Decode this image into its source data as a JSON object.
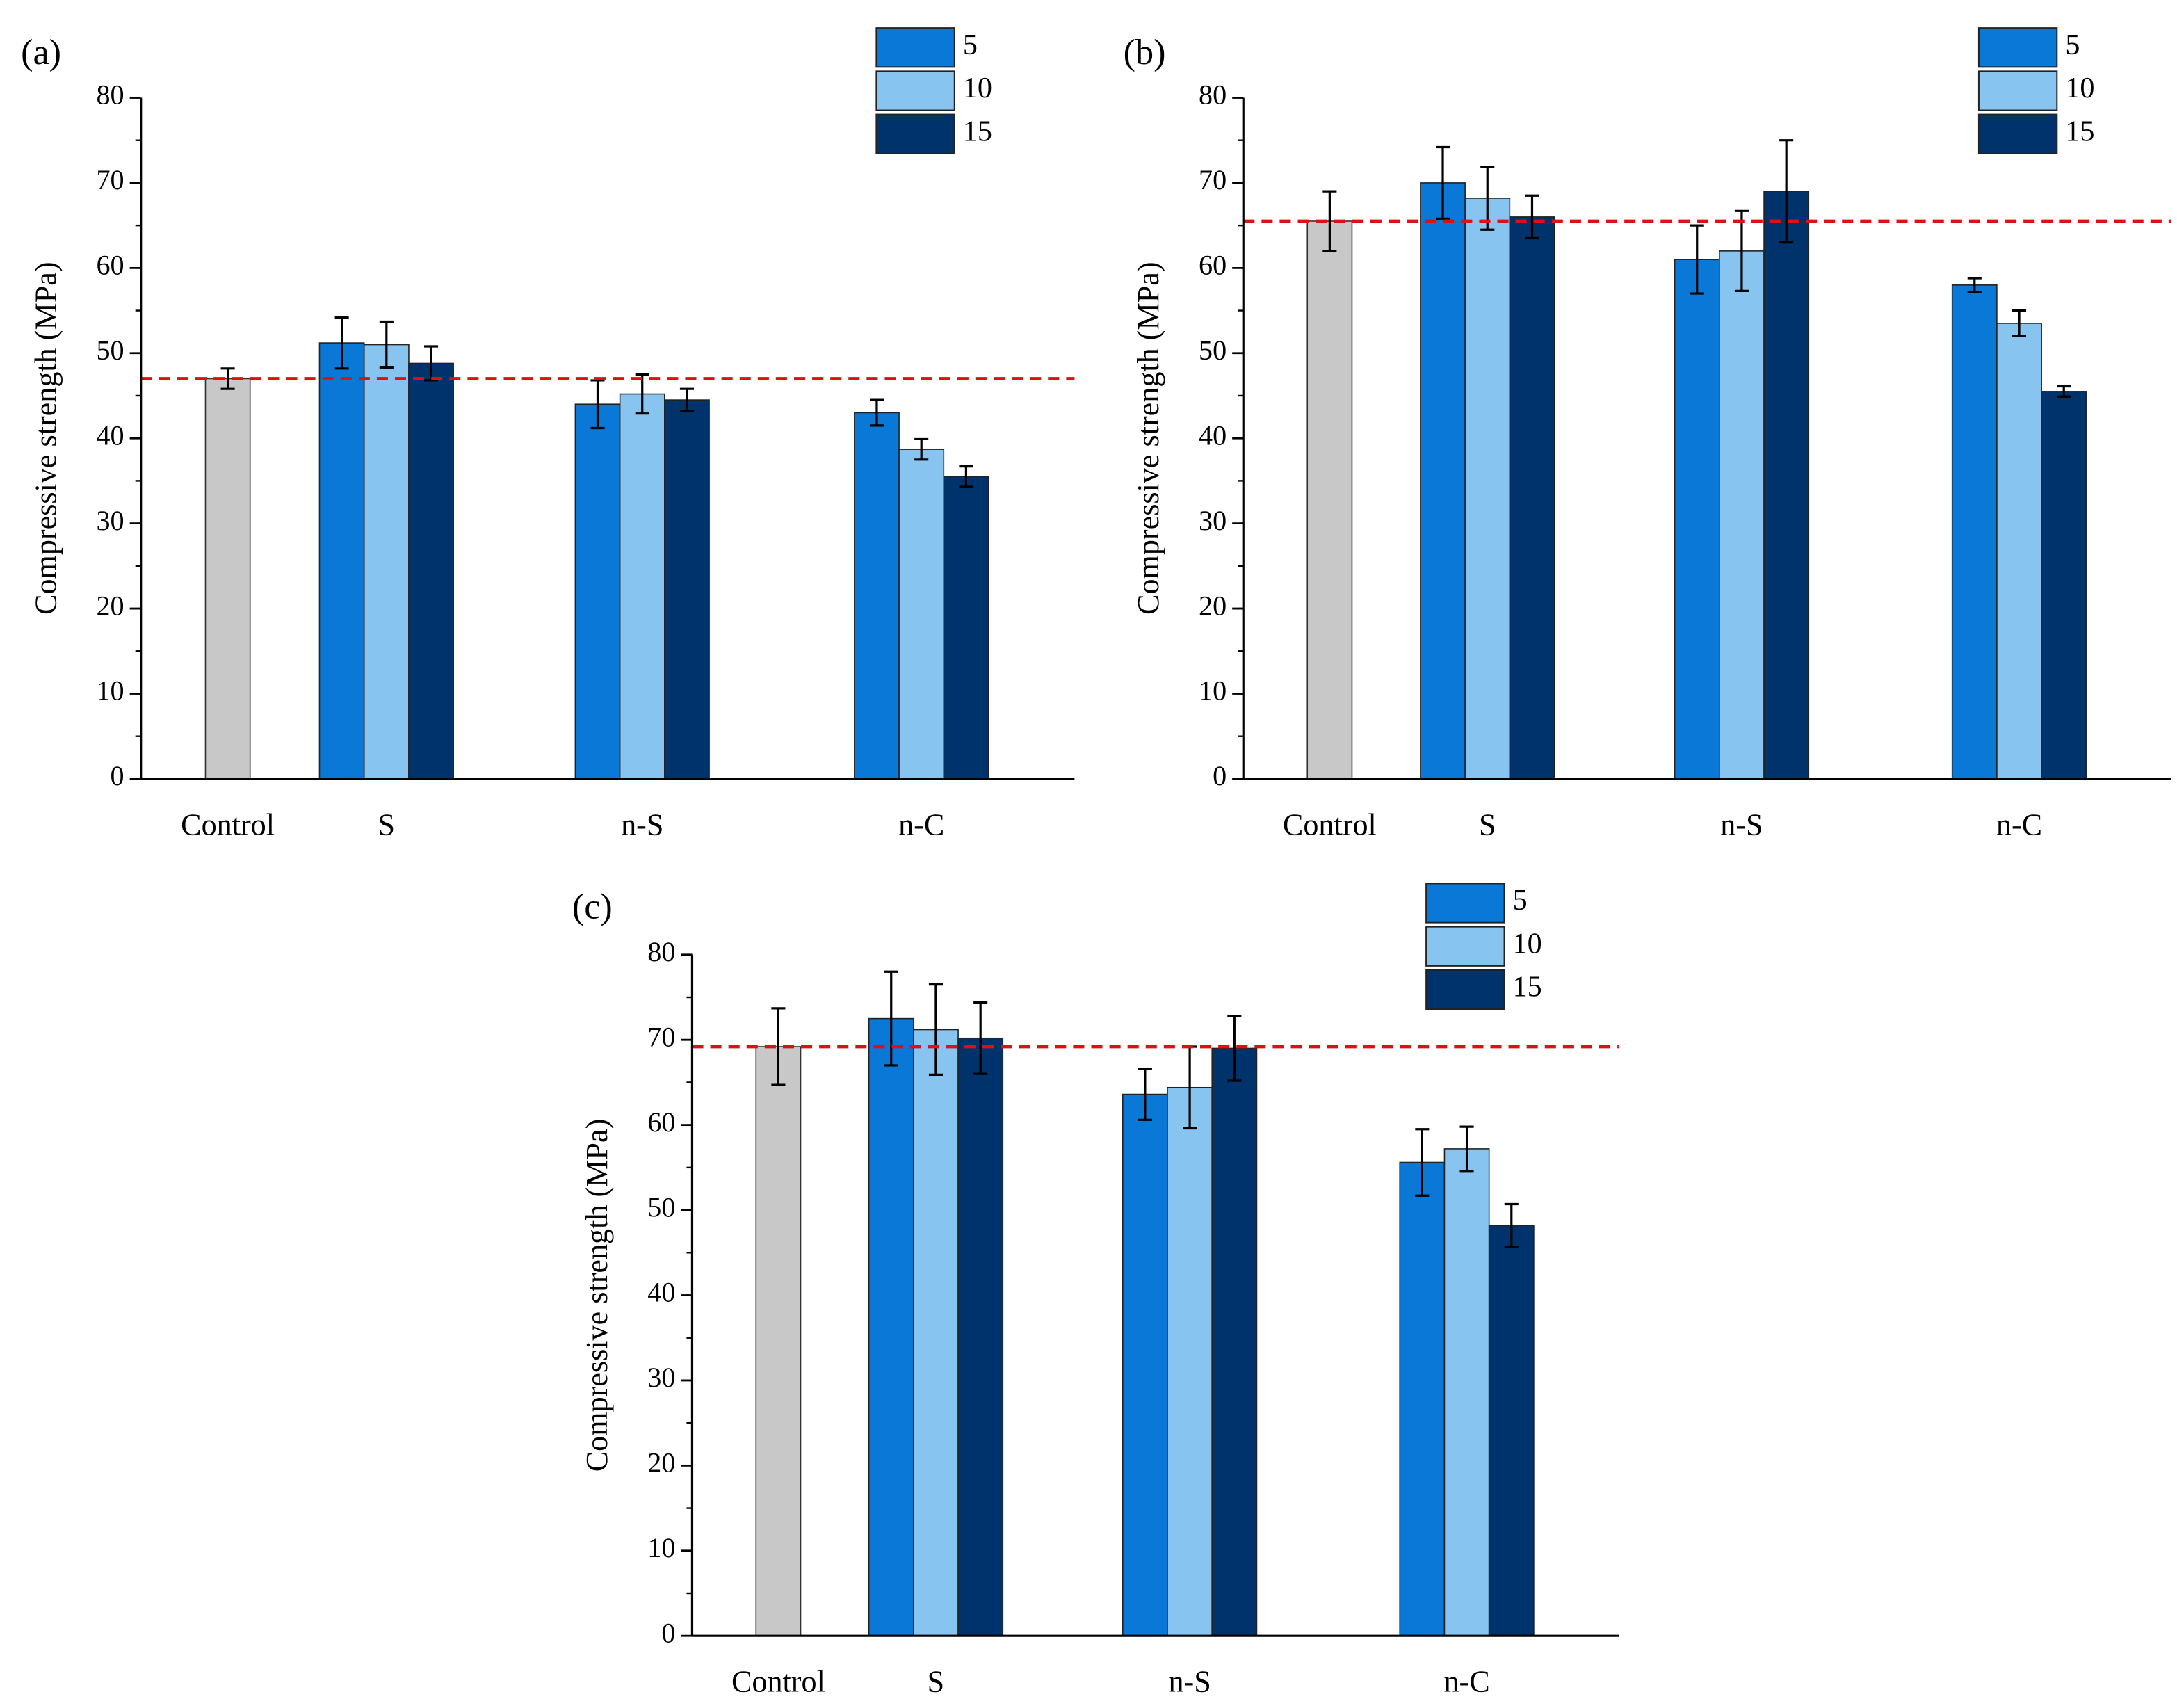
{
  "chart_data": [
    {
      "type": "bar",
      "title": "(a)",
      "ylabel": "Compressive strength (MPa)",
      "categories": [
        "Control",
        "S",
        "n-S",
        "n-C"
      ],
      "control": {
        "value": 47,
        "error": 1.2,
        "color": "#c8c8c8"
      },
      "reference_line": {
        "value": 47,
        "color": "#e01010"
      },
      "series": [
        {
          "name": "5",
          "color": "#0a78d6",
          "values": [
            null,
            51.2,
            44,
            43
          ],
          "errors": [
            null,
            3,
            2.8,
            1.5
          ]
        },
        {
          "name": "10",
          "color": "#88c4f0",
          "values": [
            null,
            51,
            45.2,
            38.7
          ],
          "errors": [
            null,
            2.7,
            2.3,
            1.2
          ]
        },
        {
          "name": "15",
          "color": "#00336b",
          "values": [
            null,
            48.8,
            44.5,
            35.5
          ],
          "errors": [
            null,
            2,
            1.3,
            1.2
          ]
        }
      ],
      "ylim": [
        0,
        80
      ],
      "yticks": [
        0,
        10,
        20,
        30,
        40,
        50,
        60,
        70,
        80
      ],
      "legend": "upper right"
    },
    {
      "type": "bar",
      "title": "(b)",
      "ylabel": "Compressive strength (MPa)",
      "categories": [
        "Control",
        "S",
        "n-S",
        "n-C"
      ],
      "control": {
        "value": 65.5,
        "error": 3.5,
        "color": "#c8c8c8"
      },
      "reference_line": {
        "value": 65.5,
        "color": "#e01010"
      },
      "series": [
        {
          "name": "5",
          "color": "#0a78d6",
          "values": [
            null,
            70,
            61,
            58
          ],
          "errors": [
            null,
            4.2,
            4,
            0.8
          ]
        },
        {
          "name": "10",
          "color": "#88c4f0",
          "values": [
            null,
            68.2,
            62,
            53.5
          ],
          "errors": [
            null,
            3.7,
            4.7,
            1.5
          ]
        },
        {
          "name": "15",
          "color": "#00336b",
          "values": [
            null,
            66,
            69,
            45.5
          ],
          "errors": [
            null,
            2.5,
            6,
            0.6
          ]
        }
      ],
      "ylim": [
        0,
        80
      ],
      "yticks": [
        0,
        10,
        20,
        30,
        40,
        50,
        60,
        70,
        80
      ],
      "legend": "upper right"
    },
    {
      "type": "bar",
      "title": "(c)",
      "ylabel": "Compressive strength (MPa)",
      "categories": [
        "Control",
        "S",
        "n-S",
        "n-C"
      ],
      "control": {
        "value": 69.2,
        "error": 4.5,
        "color": "#c8c8c8"
      },
      "reference_line": {
        "value": 69.2,
        "color": "#e01010"
      },
      "series": [
        {
          "name": "5",
          "color": "#0a78d6",
          "values": [
            null,
            72.5,
            63.6,
            55.6
          ],
          "errors": [
            null,
            5.5,
            3,
            3.9
          ]
        },
        {
          "name": "10",
          "color": "#88c4f0",
          "values": [
            null,
            71.2,
            64.4,
            57.2
          ],
          "errors": [
            null,
            5.3,
            4.8,
            2.6
          ]
        },
        {
          "name": "15",
          "color": "#00336b",
          "values": [
            null,
            70.2,
            69,
            48.2
          ],
          "errors": [
            null,
            4.2,
            3.8,
            2.5
          ]
        }
      ],
      "ylim": [
        0,
        80
      ],
      "yticks": [
        0,
        10,
        20,
        30,
        40,
        50,
        60,
        70,
        80
      ],
      "legend": "upper right"
    }
  ]
}
